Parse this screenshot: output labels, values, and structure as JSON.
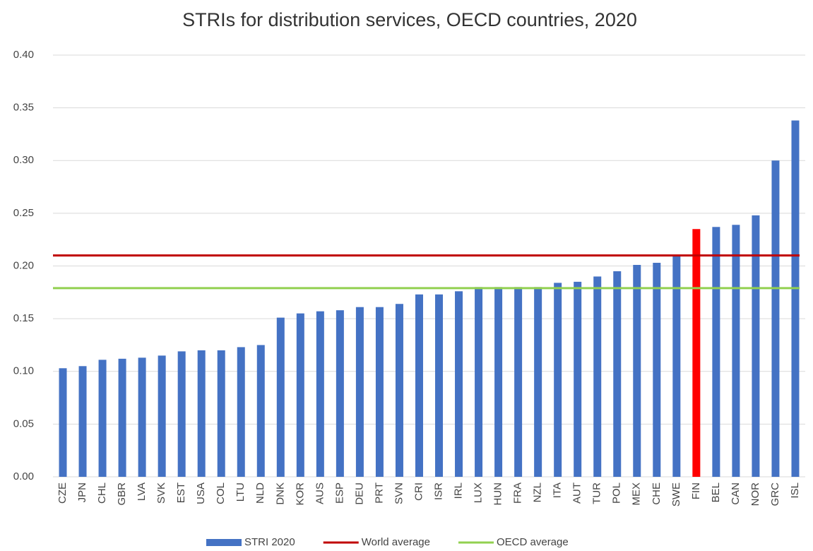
{
  "chart_data": {
    "type": "bar",
    "title": "STRIs for distribution services, OECD countries, 2020",
    "categories": [
      "CZE",
      "JPN",
      "CHL",
      "GBR",
      "LVA",
      "SVK",
      "EST",
      "USA",
      "COL",
      "LTU",
      "NLD",
      "DNK",
      "KOR",
      "AUS",
      "ESP",
      "DEU",
      "PRT",
      "SVN",
      "CRI",
      "ISR",
      "IRL",
      "LUX",
      "HUN",
      "FRA",
      "NZL",
      "ITA",
      "AUT",
      "TUR",
      "POL",
      "MEX",
      "CHE",
      "SWE",
      "FIN",
      "BEL",
      "CAN",
      "NOR",
      "GRC",
      "ISL"
    ],
    "series": [
      {
        "name": "STRI 2020",
        "color": "#4472c4",
        "values": [
          0.103,
          0.105,
          0.111,
          0.112,
          0.113,
          0.115,
          0.119,
          0.12,
          0.12,
          0.123,
          0.125,
          0.151,
          0.155,
          0.157,
          0.158,
          0.161,
          0.161,
          0.164,
          0.173,
          0.173,
          0.176,
          0.18,
          0.18,
          0.18,
          0.18,
          0.184,
          0.185,
          0.19,
          0.195,
          0.201,
          0.203,
          0.21,
          0.235,
          0.237,
          0.239,
          0.248,
          0.3,
          0.338
        ],
        "point_colors": [
          "#4472c4",
          "#4472c4",
          "#4472c4",
          "#4472c4",
          "#4472c4",
          "#4472c4",
          "#4472c4",
          "#4472c4",
          "#4472c4",
          "#4472c4",
          "#4472c4",
          "#4472c4",
          "#4472c4",
          "#4472c4",
          "#4472c4",
          "#4472c4",
          "#4472c4",
          "#4472c4",
          "#4472c4",
          "#4472c4",
          "#4472c4",
          "#4472c4",
          "#4472c4",
          "#4472c4",
          "#4472c4",
          "#4472c4",
          "#4472c4",
          "#4472c4",
          "#4472c4",
          "#4472c4",
          "#4472c4",
          "#4472c4",
          "#ff0000",
          "#4472c4",
          "#4472c4",
          "#4472c4",
          "#4472c4",
          "#4472c4"
        ]
      }
    ],
    "reference_lines": [
      {
        "name": "World average",
        "color": "#c00000",
        "value": 0.21
      },
      {
        "name": "OECD average",
        "color": "#92d050",
        "value": 0.179
      }
    ],
    "ylim": [
      0,
      0.4
    ],
    "yticks": [
      {
        "value": 0,
        "label": "0.00"
      },
      {
        "value": 0.05,
        "label": "0.05"
      },
      {
        "value": 0.1,
        "label": "0.10"
      },
      {
        "value": 0.15,
        "label": "0.15"
      },
      {
        "value": 0.2,
        "label": "0.20"
      },
      {
        "value": 0.25,
        "label": "0.25"
      },
      {
        "value": 0.3,
        "label": "0.30"
      },
      {
        "value": 0.35,
        "label": "0.35"
      },
      {
        "value": 0.4,
        "label": "0.40"
      }
    ],
    "grid": true,
    "legend": "bottom"
  }
}
